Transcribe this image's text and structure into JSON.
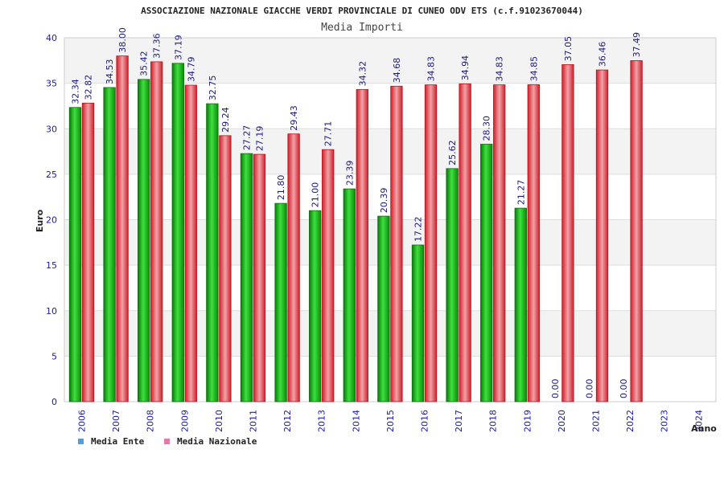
{
  "chart_data": {
    "type": "bar",
    "title": "ASSOCIAZIONE NAZIONALE GIACCHE VERDI PROVINCIALE DI CUNEO ODV ETS (c.f.91023670044)",
    "subtitle": "Media Importi",
    "xlabel": "Anno",
    "ylabel": "Euro",
    "ylim": [
      0,
      40
    ],
    "yticks": [
      0,
      5,
      10,
      15,
      20,
      25,
      30,
      35,
      40
    ],
    "grid": true,
    "legend_position": "bottom-left",
    "categories": [
      "2006",
      "2007",
      "2008",
      "2009",
      "2010",
      "2011",
      "2012",
      "2013",
      "2014",
      "2015",
      "2016",
      "2017",
      "2018",
      "2019",
      "2020",
      "2021",
      "2022",
      "2023",
      "2024"
    ],
    "series": [
      {
        "name": "Media Ente",
        "legend_color": "#5b9bd5",
        "bar_color": "#1faa1f",
        "values": [
          32.34,
          34.53,
          35.42,
          37.19,
          32.75,
          27.27,
          21.8,
          21.0,
          23.39,
          20.39,
          17.22,
          25.62,
          28.3,
          21.27,
          0.0,
          0.0,
          0.0,
          null,
          null
        ],
        "labels": [
          "32.34",
          "34.53",
          "35.42",
          "37.19",
          "32.75",
          "27.27",
          "21.80",
          "21.00",
          "23.39",
          "20.39",
          "17.22",
          "25.62",
          "28.30",
          "21.27",
          "0.00",
          "0.00",
          "0.00",
          "",
          ""
        ]
      },
      {
        "name": "Media Nazionale",
        "legend_color": "#e07aa8",
        "bar_color": "#e8343c",
        "values": [
          32.82,
          38.0,
          37.36,
          34.79,
          29.24,
          27.19,
          29.43,
          27.71,
          34.32,
          34.68,
          34.83,
          34.94,
          34.83,
          34.85,
          37.05,
          36.46,
          37.49,
          null,
          null
        ],
        "labels": [
          "32.82",
          "38.00",
          "37.36",
          "34.79",
          "29.24",
          "27.19",
          "29.43",
          "27.71",
          "34.32",
          "34.68",
          "34.83",
          "34.94",
          "34.83",
          "34.85",
          "37.05",
          "36.46",
          "37.49",
          "",
          ""
        ]
      }
    ]
  }
}
